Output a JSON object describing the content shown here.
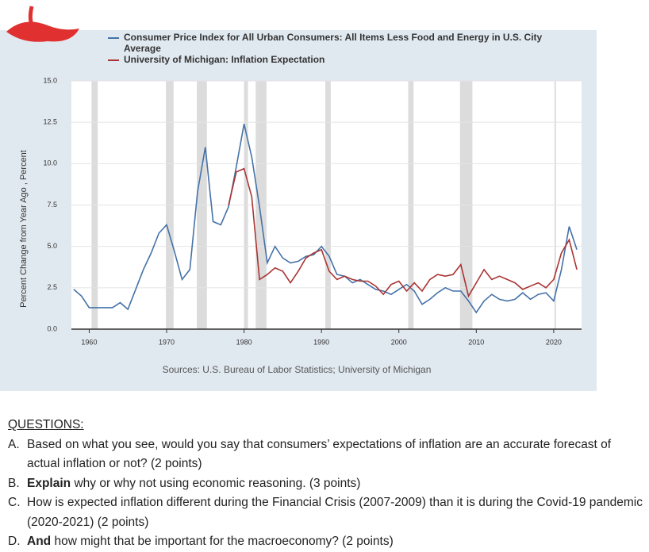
{
  "chart_data": {
    "type": "line",
    "legend": [
      "Consumer Price Index for All Urban Consumers: All Items Less Food and Energy in U.S. City Average",
      "University of Michigan: Inflation Expectation"
    ],
    "ylabel": "Percent Change from Year Ago , Percent",
    "source": "Sources: U.S. Bureau of Labor Statistics; University of Michigan",
    "x": [
      1958,
      1959,
      1960,
      1961,
      1962,
      1963,
      1964,
      1965,
      1966,
      1967,
      1968,
      1969,
      1970,
      1971,
      1972,
      1973,
      1974,
      1975,
      1976,
      1977,
      1978,
      1979,
      1980,
      1981,
      1982,
      1983,
      1984,
      1985,
      1986,
      1987,
      1988,
      1989,
      1990,
      1991,
      1992,
      1993,
      1994,
      1995,
      1996,
      1997,
      1998,
      1999,
      2000,
      2001,
      2002,
      2003,
      2004,
      2005,
      2006,
      2007,
      2008,
      2009,
      2010,
      2011,
      2012,
      2013,
      2014,
      2015,
      2016,
      2017,
      2018,
      2019,
      2020,
      2021,
      2022,
      2023
    ],
    "series": [
      {
        "name": "Consumer Price Index for All Urban Consumers: All Items Less Food and Energy in U.S. City Average",
        "color": "#4572a7",
        "values": [
          2.4,
          2.0,
          1.3,
          1.3,
          1.3,
          1.3,
          1.6,
          1.2,
          2.4,
          3.6,
          4.6,
          5.8,
          6.3,
          4.7,
          3.0,
          3.6,
          8.3,
          11.0,
          6.5,
          6.3,
          7.4,
          9.8,
          12.4,
          10.4,
          7.4,
          4.0,
          5.0,
          4.3,
          4.0,
          4.1,
          4.4,
          4.5,
          5.0,
          4.4,
          3.3,
          3.2,
          2.8,
          3.0,
          2.7,
          2.4,
          2.3,
          2.1,
          2.4,
          2.7,
          2.3,
          1.5,
          1.8,
          2.2,
          2.5,
          2.3,
          2.3,
          1.7,
          1.0,
          1.7,
          2.1,
          1.8,
          1.7,
          1.8,
          2.2,
          1.8,
          2.1,
          2.2,
          1.7,
          3.6,
          6.2,
          4.8
        ]
      },
      {
        "name": "University of Michigan: Inflation Expectation",
        "color": "#aa3333",
        "values": [
          null,
          null,
          null,
          null,
          null,
          null,
          null,
          null,
          null,
          null,
          null,
          null,
          null,
          null,
          null,
          null,
          null,
          null,
          null,
          null,
          7.5,
          9.5,
          9.7,
          8.0,
          3.0,
          3.3,
          3.7,
          3.5,
          2.8,
          3.5,
          4.3,
          4.6,
          4.8,
          3.5,
          3.0,
          3.2,
          3.0,
          2.9,
          2.9,
          2.6,
          2.1,
          2.7,
          2.9,
          2.3,
          2.8,
          2.3,
          3.0,
          3.3,
          3.2,
          3.3,
          3.9,
          2.0,
          2.8,
          3.6,
          3.0,
          3.2,
          3.0,
          2.8,
          2.4,
          2.6,
          2.8,
          2.5,
          3.0,
          4.6,
          5.4,
          3.6
        ]
      }
    ],
    "recessions": [
      [
        1960.3,
        1961.1
      ],
      [
        1969.9,
        1970.9
      ],
      [
        1973.9,
        1975.2
      ],
      [
        1980.0,
        1980.5
      ],
      [
        1981.5,
        1982.9
      ],
      [
        1990.5,
        1991.2
      ],
      [
        2001.2,
        2001.9
      ],
      [
        2007.9,
        2009.5
      ],
      [
        2020.1,
        2020.3
      ]
    ],
    "xlim": [
      1957.7,
      2023.6
    ],
    "xticks": [
      1960,
      1970,
      1980,
      1990,
      2000,
      2010,
      2020
    ],
    "ylim": [
      0,
      15
    ],
    "yticks": [
      {
        "value": 0,
        "label": "0.0"
      },
      {
        "value": 2.5,
        "label": "2.5"
      },
      {
        "value": 5,
        "label": "5.0"
      },
      {
        "value": 7.5,
        "label": "7.5"
      },
      {
        "value": 10,
        "label": "10.0"
      },
      {
        "value": 12.5,
        "label": "12.5"
      },
      {
        "value": 15,
        "label": "15.0"
      }
    ],
    "grid": true
  },
  "questions": {
    "heading": "QUESTIONS:",
    "items": [
      {
        "letter": "A.",
        "text": "Based on what you see, would you say that consumers’ expectations of inflation are an accurate forecast of actual inflation or not? (2 points)"
      },
      {
        "letter": "B.",
        "bold": "Explain",
        "text": " why or why not using economic reasoning.  (3 points)"
      },
      {
        "letter": "C.",
        "text": "How is expected inflation different during the Financial Crisis (2007-2009) than it is during the Covid-19 pandemic (2020-2021) (2 points)"
      },
      {
        "letter": "D.",
        "bold": "And",
        "text": " how might that be important for the macroeconomy? (2 points)"
      }
    ]
  }
}
